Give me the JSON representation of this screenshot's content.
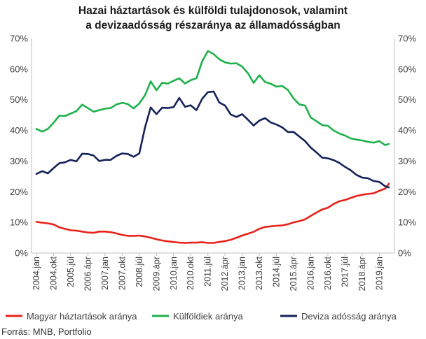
{
  "title_line1": "Hazai háztartások és külföldi tulajdonosok, valamint",
  "title_line2": "a devizaadósság részaránya az államadósságban",
  "source": "Forrás: MNB, Portfolio",
  "chart_data": {
    "type": "line",
    "title": "Hazai háztartások és külföldi tulajdonosok, valamint a devizaadósság részaránya az államadósságban",
    "y_ticks": [
      "0%",
      "10%",
      "20%",
      "30%",
      "40%",
      "50%",
      "60%",
      "70%"
    ],
    "ylim": [
      0,
      70
    ],
    "x_tick_labels": [
      "2004.jan",
      "2004.okt",
      "2005.júl",
      "2006.ápr",
      "2007.jan",
      "2007.okt",
      "2008.júl",
      "2009.ápr",
      "2010.jan",
      "2010.okt",
      "2011.júl",
      "2012.ápr",
      "2013.jan",
      "2013.okt",
      "2014.júl",
      "2015.ápr",
      "2016.jan",
      "2016.okt",
      "2017.júl",
      "2018.ápr",
      "2019.jan"
    ],
    "x_range": [
      "2004-01",
      "2019-06"
    ],
    "legend_position": "bottom",
    "grid": false,
    "series": [
      {
        "name": "Magyar háztartások aránya",
        "color": "#e8221b",
        "points": [
          [
            "2004-01",
            10.2
          ],
          [
            "2004-04",
            9.9
          ],
          [
            "2004-07",
            9.7
          ],
          [
            "2004-10",
            9.3
          ],
          [
            "2005-01",
            8.4
          ],
          [
            "2005-04",
            7.9
          ],
          [
            "2005-07",
            7.4
          ],
          [
            "2005-10",
            7.3
          ],
          [
            "2006-01",
            7.0
          ],
          [
            "2006-04",
            6.7
          ],
          [
            "2006-07",
            6.6
          ],
          [
            "2006-10",
            7.0
          ],
          [
            "2007-01",
            7.0
          ],
          [
            "2007-04",
            6.8
          ],
          [
            "2007-07",
            6.4
          ],
          [
            "2007-10",
            5.9
          ],
          [
            "2008-01",
            5.6
          ],
          [
            "2008-04",
            5.6
          ],
          [
            "2008-07",
            5.7
          ],
          [
            "2008-10",
            5.4
          ],
          [
            "2009-01",
            5.0
          ],
          [
            "2009-04",
            4.5
          ],
          [
            "2009-07",
            4.1
          ],
          [
            "2009-10",
            3.8
          ],
          [
            "2010-01",
            3.6
          ],
          [
            "2010-04",
            3.4
          ],
          [
            "2010-07",
            3.3
          ],
          [
            "2010-10",
            3.4
          ],
          [
            "2011-01",
            3.4
          ],
          [
            "2011-04",
            3.5
          ],
          [
            "2011-07",
            3.3
          ],
          [
            "2011-10",
            3.3
          ],
          [
            "2012-01",
            3.6
          ],
          [
            "2012-04",
            3.9
          ],
          [
            "2012-07",
            4.3
          ],
          [
            "2012-10",
            5.0
          ],
          [
            "2013-01",
            5.7
          ],
          [
            "2013-04",
            6.3
          ],
          [
            "2013-07",
            6.9
          ],
          [
            "2013-10",
            7.9
          ],
          [
            "2014-01",
            8.5
          ],
          [
            "2014-04",
            8.7
          ],
          [
            "2014-07",
            8.9
          ],
          [
            "2014-10",
            9.0
          ],
          [
            "2015-01",
            9.4
          ],
          [
            "2015-04",
            10.0
          ],
          [
            "2015-07",
            10.4
          ],
          [
            "2015-10",
            11.0
          ],
          [
            "2016-01",
            12.1
          ],
          [
            "2016-04",
            13.2
          ],
          [
            "2016-07",
            14.2
          ],
          [
            "2016-10",
            14.8
          ],
          [
            "2017-01",
            16.0
          ],
          [
            "2017-04",
            16.9
          ],
          [
            "2017-07",
            17.3
          ],
          [
            "2017-10",
            18.0
          ],
          [
            "2018-01",
            18.6
          ],
          [
            "2018-04",
            19.0
          ],
          [
            "2018-07",
            19.3
          ],
          [
            "2018-10",
            19.5
          ],
          [
            "2019-01",
            20.3
          ],
          [
            "2019-04",
            21.0
          ],
          [
            "2019-06",
            22.6
          ]
        ]
      },
      {
        "name": "Külföldiek aránya",
        "color": "#1fb14b",
        "points": [
          [
            "2004-01",
            40.5
          ],
          [
            "2004-04",
            39.6
          ],
          [
            "2004-07",
            40.5
          ],
          [
            "2004-10",
            42.5
          ],
          [
            "2005-01",
            44.8
          ],
          [
            "2005-04",
            44.7
          ],
          [
            "2005-07",
            45.5
          ],
          [
            "2005-10",
            46.3
          ],
          [
            "2006-01",
            48.4
          ],
          [
            "2006-04",
            47.3
          ],
          [
            "2006-07",
            46.1
          ],
          [
            "2006-10",
            46.6
          ],
          [
            "2007-01",
            47.1
          ],
          [
            "2007-04",
            47.3
          ],
          [
            "2007-07",
            48.5
          ],
          [
            "2007-10",
            49.0
          ],
          [
            "2008-01",
            48.6
          ],
          [
            "2008-04",
            47.2
          ],
          [
            "2008-07",
            48.8
          ],
          [
            "2008-10",
            51.5
          ],
          [
            "2009-01",
            56.0
          ],
          [
            "2009-04",
            53.1
          ],
          [
            "2009-07",
            55.5
          ],
          [
            "2009-10",
            55.3
          ],
          [
            "2010-01",
            56.2
          ],
          [
            "2010-04",
            57.0
          ],
          [
            "2010-07",
            55.3
          ],
          [
            "2010-10",
            56.4
          ],
          [
            "2011-01",
            57.0
          ],
          [
            "2011-04",
            62.5
          ],
          [
            "2011-07",
            65.9
          ],
          [
            "2011-10",
            64.9
          ],
          [
            "2012-01",
            63.2
          ],
          [
            "2012-04",
            62.2
          ],
          [
            "2012-07",
            61.8
          ],
          [
            "2012-10",
            61.9
          ],
          [
            "2013-01",
            60.8
          ],
          [
            "2013-04",
            58.7
          ],
          [
            "2013-07",
            55.5
          ],
          [
            "2013-10",
            58.0
          ],
          [
            "2014-01",
            55.8
          ],
          [
            "2014-04",
            55.2
          ],
          [
            "2014-07",
            54.3
          ],
          [
            "2014-10",
            54.5
          ],
          [
            "2015-01",
            53.2
          ],
          [
            "2015-04",
            50.4
          ],
          [
            "2015-07",
            48.5
          ],
          [
            "2015-10",
            48.1
          ],
          [
            "2016-01",
            44.2
          ],
          [
            "2016-04",
            43.0
          ],
          [
            "2016-07",
            41.7
          ],
          [
            "2016-10",
            41.5
          ],
          [
            "2017-01",
            40.0
          ],
          [
            "2017-04",
            39.0
          ],
          [
            "2017-07",
            38.3
          ],
          [
            "2017-10",
            37.4
          ],
          [
            "2018-01",
            37.0
          ],
          [
            "2018-04",
            36.7
          ],
          [
            "2018-07",
            36.3
          ],
          [
            "2018-10",
            36.0
          ],
          [
            "2019-01",
            36.5
          ],
          [
            "2019-04",
            35.2
          ],
          [
            "2019-06",
            35.6
          ]
        ]
      },
      {
        "name": "Deviza adósság aránya",
        "color": "#16235a",
        "points": [
          [
            "2004-01",
            25.8
          ],
          [
            "2004-04",
            26.7
          ],
          [
            "2004-07",
            26.0
          ],
          [
            "2004-10",
            27.7
          ],
          [
            "2005-01",
            29.3
          ],
          [
            "2005-04",
            29.6
          ],
          [
            "2005-07",
            30.4
          ],
          [
            "2005-10",
            29.9
          ],
          [
            "2006-01",
            32.4
          ],
          [
            "2006-04",
            32.3
          ],
          [
            "2006-07",
            31.8
          ],
          [
            "2006-10",
            30.0
          ],
          [
            "2007-01",
            30.4
          ],
          [
            "2007-04",
            30.4
          ],
          [
            "2007-07",
            31.7
          ],
          [
            "2007-10",
            32.5
          ],
          [
            "2008-01",
            32.3
          ],
          [
            "2008-04",
            31.4
          ],
          [
            "2008-07",
            32.5
          ],
          [
            "2008-10",
            41.0
          ],
          [
            "2009-01",
            47.5
          ],
          [
            "2009-04",
            45.3
          ],
          [
            "2009-07",
            47.4
          ],
          [
            "2009-10",
            47.3
          ],
          [
            "2010-01",
            47.6
          ],
          [
            "2010-04",
            50.6
          ],
          [
            "2010-07",
            47.7
          ],
          [
            "2010-10",
            48.2
          ],
          [
            "2011-01",
            46.6
          ],
          [
            "2011-04",
            50.3
          ],
          [
            "2011-07",
            52.5
          ],
          [
            "2011-10",
            52.7
          ],
          [
            "2012-01",
            49.1
          ],
          [
            "2012-04",
            48.1
          ],
          [
            "2012-07",
            45.2
          ],
          [
            "2012-10",
            44.4
          ],
          [
            "2013-01",
            45.3
          ],
          [
            "2013-04",
            43.5
          ],
          [
            "2013-07",
            41.6
          ],
          [
            "2013-10",
            43.2
          ],
          [
            "2014-01",
            44.0
          ],
          [
            "2014-04",
            42.6
          ],
          [
            "2014-07",
            41.9
          ],
          [
            "2014-10",
            41.0
          ],
          [
            "2015-01",
            39.5
          ],
          [
            "2015-04",
            39.5
          ],
          [
            "2015-07",
            38.0
          ],
          [
            "2015-10",
            36.5
          ],
          [
            "2016-01",
            34.4
          ],
          [
            "2016-04",
            32.8
          ],
          [
            "2016-07",
            31.1
          ],
          [
            "2016-10",
            30.9
          ],
          [
            "2017-01",
            30.3
          ],
          [
            "2017-04",
            29.4
          ],
          [
            "2017-07",
            28.1
          ],
          [
            "2017-10",
            27.0
          ],
          [
            "2018-01",
            25.5
          ],
          [
            "2018-04",
            24.6
          ],
          [
            "2018-07",
            24.4
          ],
          [
            "2018-10",
            23.5
          ],
          [
            "2019-01",
            23.2
          ],
          [
            "2019-04",
            21.8
          ],
          [
            "2019-06",
            21.4
          ]
        ]
      }
    ]
  }
}
